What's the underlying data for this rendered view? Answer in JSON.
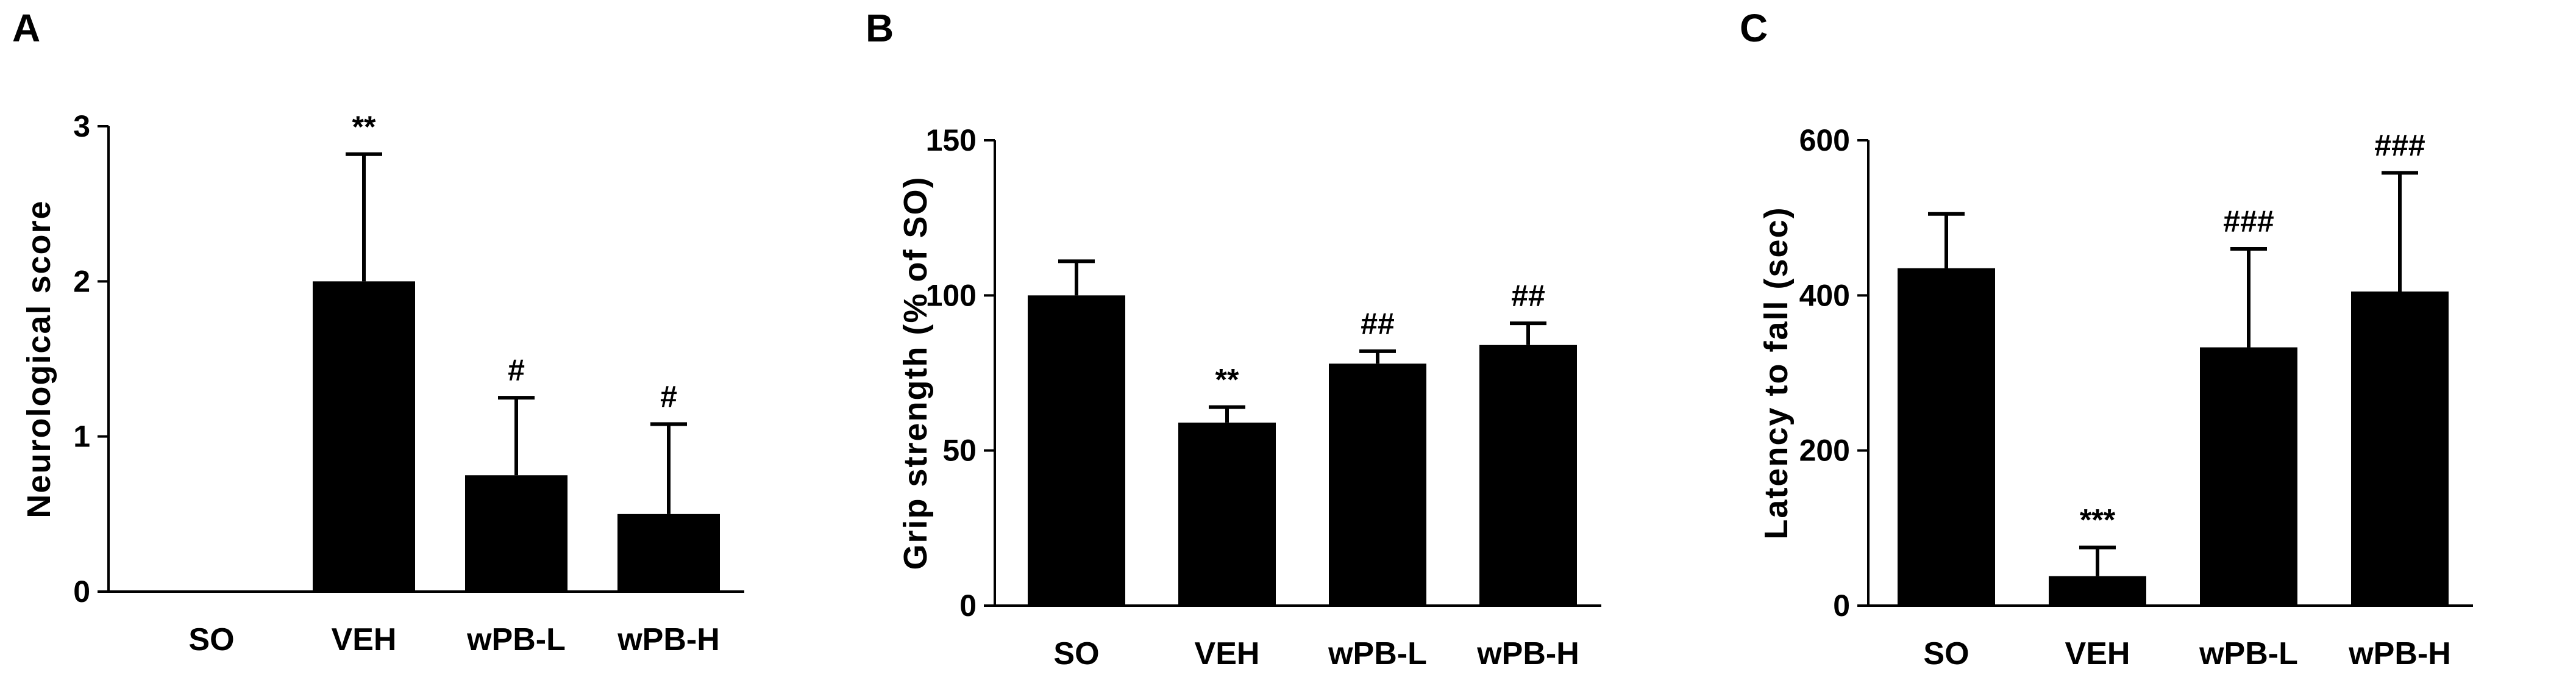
{
  "chart_data": [
    {
      "panel": "A",
      "type": "bar",
      "categories": [
        "SO",
        "VEH",
        "wPB-L",
        "wPB-H"
      ],
      "values": [
        0,
        2.0,
        0.75,
        0.5
      ],
      "errors": [
        0,
        0.82,
        0.5,
        0.58
      ],
      "annotations": [
        "",
        "**",
        "#",
        "#"
      ],
      "ylabel": "Neurological score",
      "ylim": [
        0,
        3
      ],
      "yticks": [
        "0",
        "1",
        "2",
        "3"
      ],
      "ytick_values": [
        0,
        1,
        2,
        3
      ],
      "grid": false
    },
    {
      "panel": "B",
      "type": "bar",
      "categories": [
        "SO",
        "VEH",
        "wPB-L",
        "wPB-H"
      ],
      "values": [
        100,
        59,
        78,
        84
      ],
      "errors": [
        11,
        5,
        4,
        7
      ],
      "annotations": [
        "",
        "**",
        "##",
        "##"
      ],
      "ylabel": "Grip strength (% of SO)",
      "ylim": [
        0,
        150
      ],
      "yticks": [
        "0",
        "50",
        "100",
        "150"
      ],
      "ytick_values": [
        0,
        50,
        100,
        150
      ],
      "grid": false
    },
    {
      "panel": "C",
      "type": "bar",
      "categories": [
        "SO",
        "VEH",
        "wPB-L",
        "wPB-H"
      ],
      "values": [
        435,
        38,
        333,
        405
      ],
      "errors": [
        70,
        37,
        127,
        153
      ],
      "annotations": [
        "",
        "***",
        "###",
        "###"
      ],
      "ylabel": "Latency to fall (sec)",
      "ylim": [
        0,
        600
      ],
      "yticks": [
        "0",
        "200",
        "400",
        "600"
      ],
      "ytick_values": [
        0,
        200,
        400,
        600
      ],
      "grid": false
    }
  ],
  "colors": {
    "bar": "#000000",
    "axis": "#000000"
  }
}
